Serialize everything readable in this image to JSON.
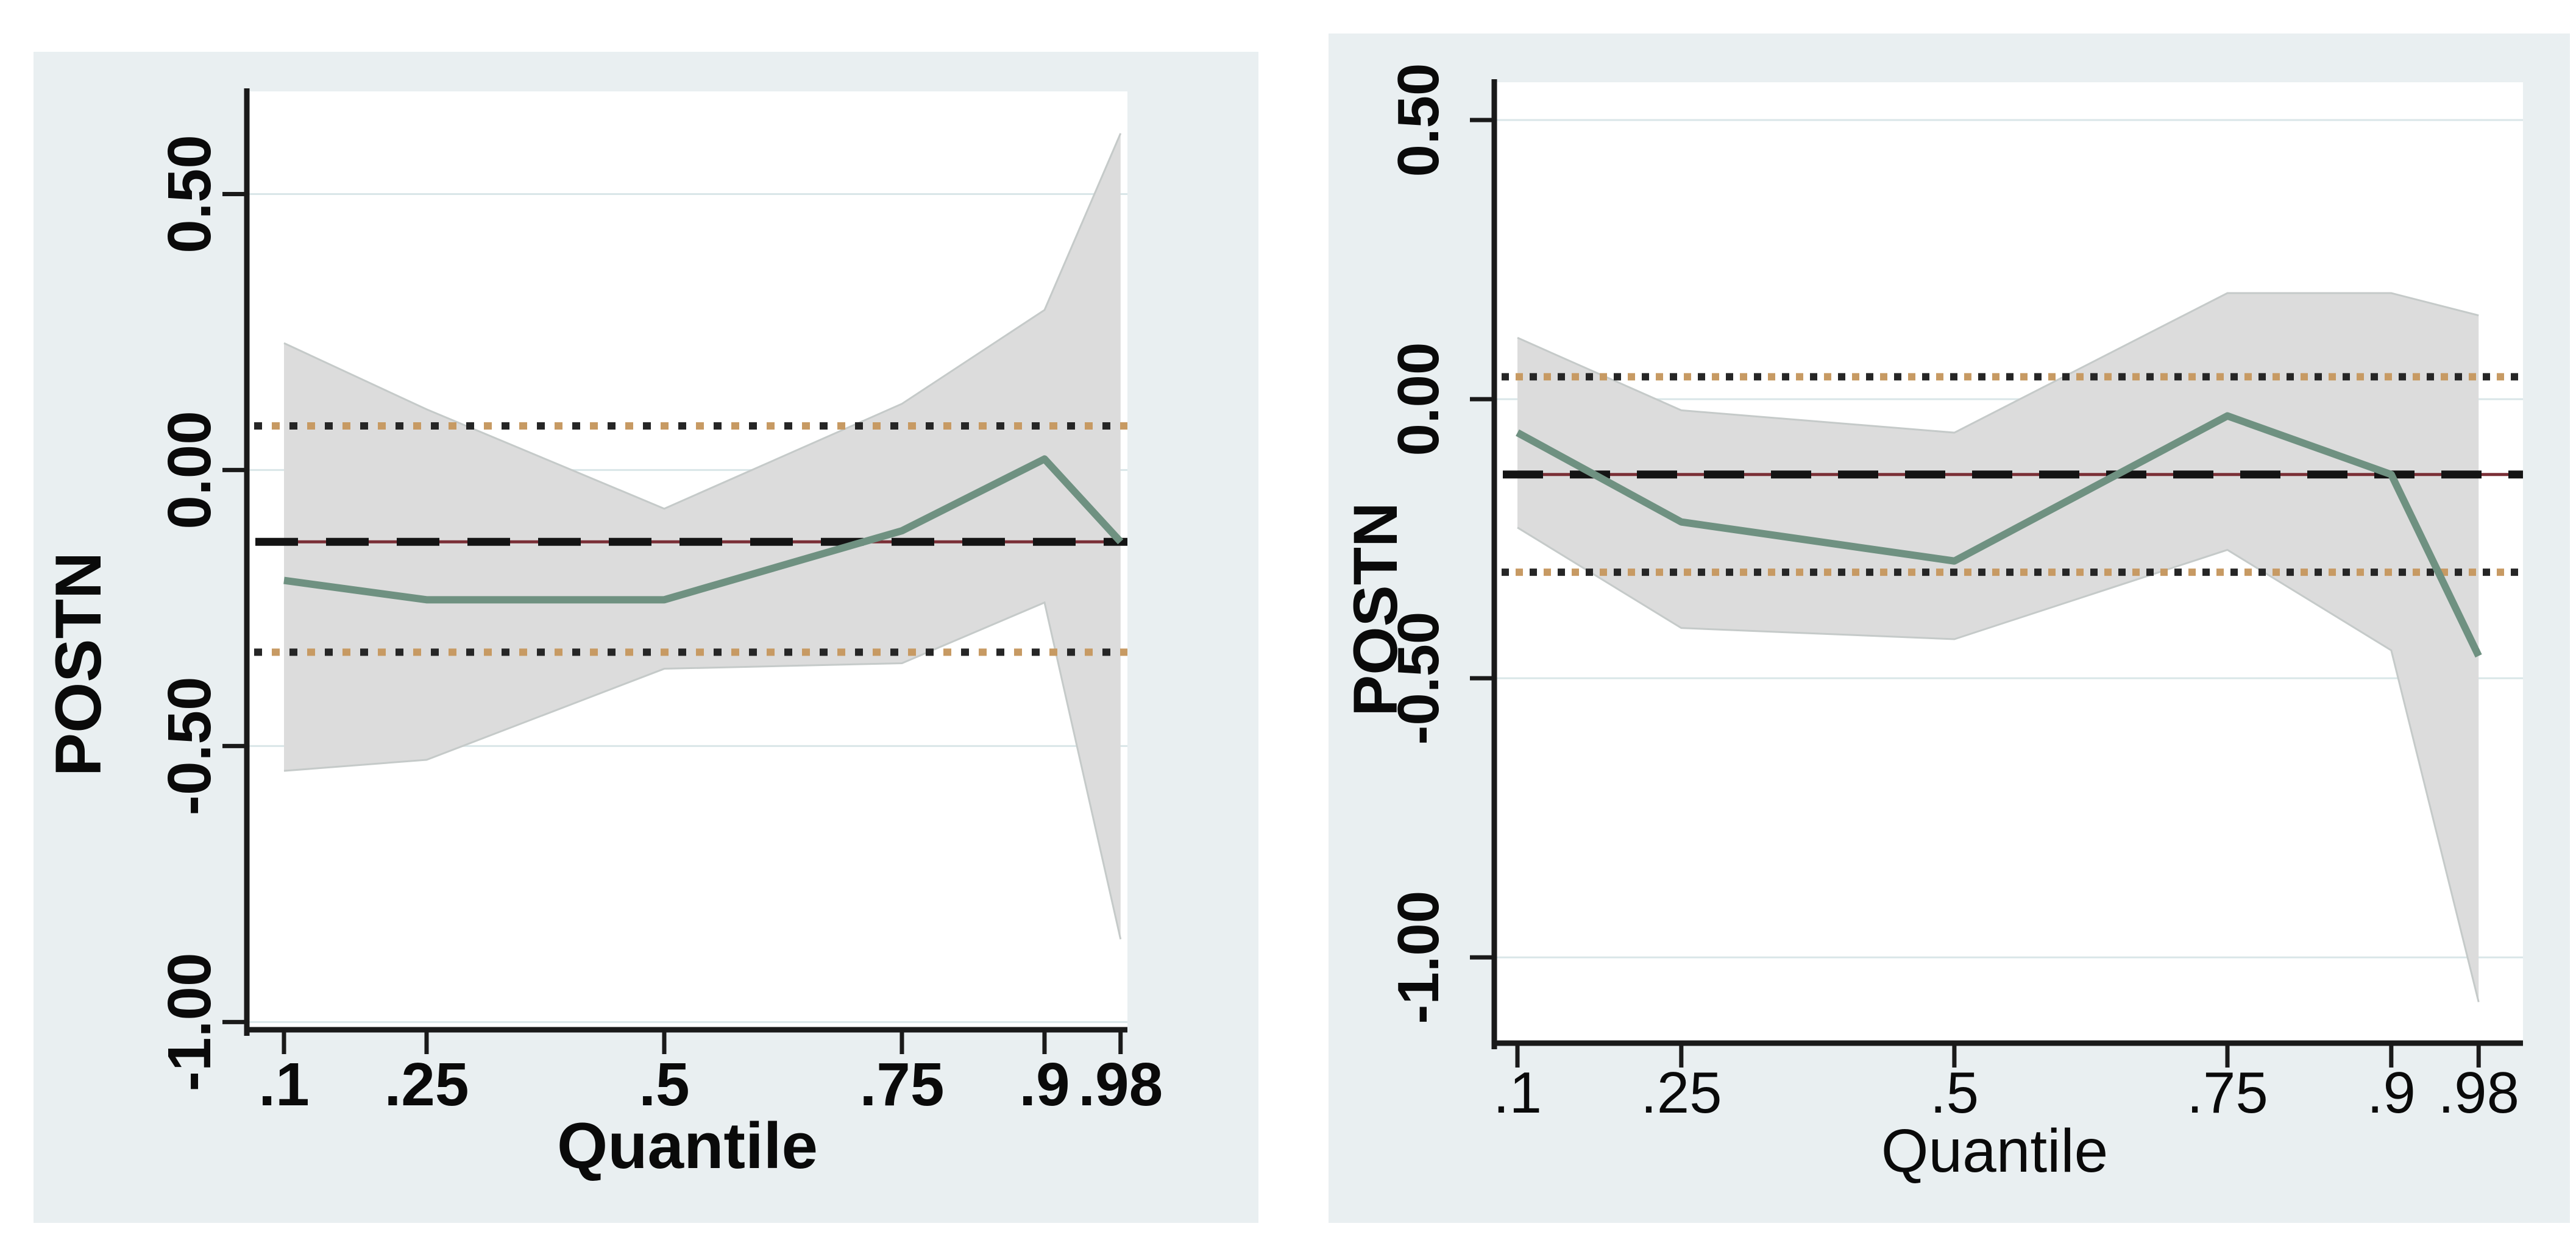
{
  "figure": {
    "description": "Two quantile regression coefficient plots with OLS reference lines",
    "background": "#ffffff"
  },
  "chart_data": [
    {
      "type": "area",
      "panel": "left",
      "title": "",
      "ylabel": "POSTN",
      "xlabel": "Quantile",
      "x_tick_labels": [
        ".1",
        ".25",
        ".5",
        ".75",
        ".9",
        ".98"
      ],
      "x_tick_values": [
        0.1,
        0.25,
        0.5,
        0.75,
        0.9,
        0.98
      ],
      "y_tick_labels": [
        "0.50",
        "0.00",
        "-0.50",
        "-1.00"
      ],
      "y_tick_values": [
        0.5,
        0,
        -0.5,
        -1
      ],
      "x_domain": [
        0.0609,
        0.9872
      ],
      "y_domain": [
        0.686,
        -1.014
      ],
      "grid": "on",
      "legend_position": "none",
      "quantiles": [
        0.1,
        0.25,
        0.5,
        0.75,
        0.9,
        0.98
      ],
      "series": [
        {
          "name": "quantile-coefficient",
          "values": [
            -0.2,
            -0.235,
            -0.235,
            -0.11,
            0.02,
            -0.13
          ]
        },
        {
          "name": "ci-upper",
          "values": [
            0.23,
            0.11,
            -0.07,
            0.12,
            0.29,
            0.61
          ]
        },
        {
          "name": "ci-lower",
          "values": [
            -0.545,
            -0.525,
            -0.36,
            -0.35,
            -0.24,
            -0.85
          ]
        }
      ],
      "ols": {
        "estimate": -0.13,
        "ci_upper": 0.08,
        "ci_lower": -0.33
      },
      "colors": {
        "panel_bg": "#e9eff1",
        "plot_bg": "#ffffff",
        "grid": "#d9e6e8",
        "band_fill": "#dcdcdc",
        "band_edge": "#c5cac9",
        "line": "#6f9181",
        "ols_dash": "#141414",
        "ols_base": "#7a2f36",
        "dot_dark": "#262626",
        "dot_warm": "#c79a63",
        "axis": "#1a1a1a"
      }
    },
    {
      "type": "area",
      "panel": "right",
      "title": "",
      "ylabel": "POSTN",
      "xlabel": "Quantile",
      "x_tick_labels": [
        ".1",
        ".25",
        ".5",
        ".75",
        ".9",
        ".98"
      ],
      "x_tick_values": [
        0.1,
        0.25,
        0.5,
        0.75,
        0.9,
        0.98
      ],
      "y_tick_labels": [
        "0.50",
        "0.00",
        "-0.50",
        "-1.00"
      ],
      "y_tick_values": [
        0.5,
        0,
        -0.5,
        -1
      ],
      "x_domain": [
        0.0788,
        1.0206
      ],
      "y_domain": [
        0.5677,
        -1.1537
      ],
      "grid": "on",
      "legend_position": "none",
      "quantiles": [
        0.1,
        0.25,
        0.5,
        0.75,
        0.9,
        0.98
      ],
      "series": [
        {
          "name": "quantile-coefficient",
          "values": [
            -0.06,
            -0.22,
            -0.29,
            -0.03,
            -0.135,
            -0.46
          ]
        },
        {
          "name": "ci-upper",
          "values": [
            0.11,
            -0.02,
            -0.06,
            0.19,
            0.19,
            0.15
          ]
        },
        {
          "name": "ci-lower",
          "values": [
            -0.23,
            -0.41,
            -0.43,
            -0.27,
            -0.45,
            -1.08
          ]
        }
      ],
      "ols": {
        "estimate": -0.135,
        "ci_upper": 0.04,
        "ci_lower": -0.31
      },
      "colors": {
        "panel_bg": "#e9eff1",
        "plot_bg": "#ffffff",
        "grid": "#d9e6e8",
        "band_fill": "#dcdcdc",
        "band_edge": "#c5cac9",
        "line": "#6f9181",
        "ols_dash": "#141414",
        "ols_base": "#7a2f36",
        "dot_dark": "#262626",
        "dot_warm": "#c79a63",
        "axis": "#1a1a1a"
      }
    }
  ]
}
